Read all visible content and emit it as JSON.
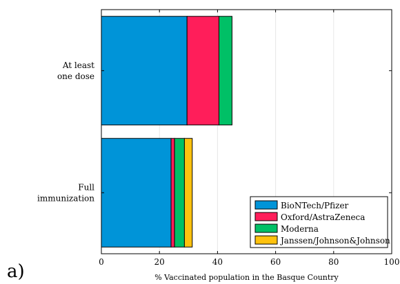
{
  "panel_label": "a)",
  "chart_data": {
    "type": "bar",
    "orientation": "horizontal",
    "stacked": true,
    "categories": [
      "At least one dose",
      "Full immunization"
    ],
    "category_lines": [
      [
        "At least",
        "one dose"
      ],
      [
        "Full",
        "immunization"
      ]
    ],
    "series": [
      {
        "name": "BioNTech/Pfizer",
        "color": "#0094D8",
        "values": [
          29.5,
          24.0
        ]
      },
      {
        "name": "Oxford/AstraZeneca",
        "color": "#FF1E5A",
        "values": [
          11.0,
          1.2
        ]
      },
      {
        "name": "Moderna",
        "color": "#00C066",
        "values": [
          4.5,
          3.4
        ]
      },
      {
        "name": "Janssen/Johnson&Johnson",
        "color": "#FFC20E",
        "values": [
          0,
          2.7
        ]
      }
    ],
    "xlabel": "% Vaccinated population in the Basque Country",
    "ylabel": "",
    "title": "",
    "xlim": [
      0,
      100
    ],
    "xticks": [
      0,
      20,
      40,
      60,
      80,
      100
    ],
    "grid": "vertical",
    "legend_position": "bottom-right"
  }
}
